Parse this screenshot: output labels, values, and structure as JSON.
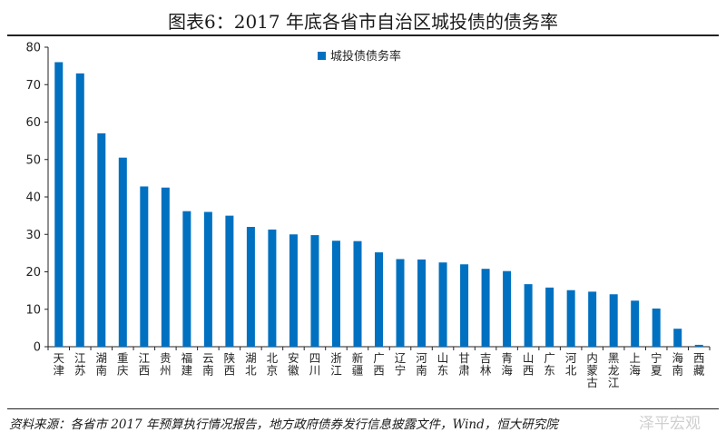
{
  "header": {
    "title": "图表6：2017 年底各省市自治区城投债的债务率"
  },
  "footer": {
    "source": "资料来源：各省市 2017 年预算执行情况报告，地方政府债券发行信息披露文件，Wind，恒大研究院",
    "watermark": "泽平宏观"
  },
  "chart_data": {
    "type": "bar",
    "categories": [
      "天津",
      "江苏",
      "湖南",
      "重庆",
      "江西",
      "贵州",
      "福建",
      "云南",
      "陕西",
      "湖北",
      "北京",
      "安徽",
      "四川",
      "浙江",
      "新疆",
      "广西",
      "辽宁",
      "河南",
      "山东",
      "甘肃",
      "吉林",
      "青海",
      "山西",
      "广东",
      "河北",
      "内蒙古",
      "黑龙江",
      "上海",
      "宁夏",
      "海南",
      "西藏"
    ],
    "series": [
      {
        "name": "城投债债务率",
        "values": [
          76,
          73,
          57,
          50.5,
          42.8,
          42.5,
          36.2,
          36,
          35,
          32,
          31.3,
          30,
          29.8,
          28.3,
          28.2,
          25.2,
          23.4,
          23.3,
          22.5,
          22,
          20.8,
          20.2,
          16.7,
          15.8,
          15.1,
          14.7,
          14,
          12.3,
          10.2,
          4.8,
          0.5
        ]
      }
    ],
    "ylim": [
      0,
      80
    ],
    "yticks": [
      0,
      10,
      20,
      30,
      40,
      50,
      60,
      70,
      80
    ],
    "legend_position": "top-center",
    "grid": false,
    "colors": {
      "bar": "#0070c0",
      "axis": "#222222",
      "text": "#222222"
    }
  }
}
